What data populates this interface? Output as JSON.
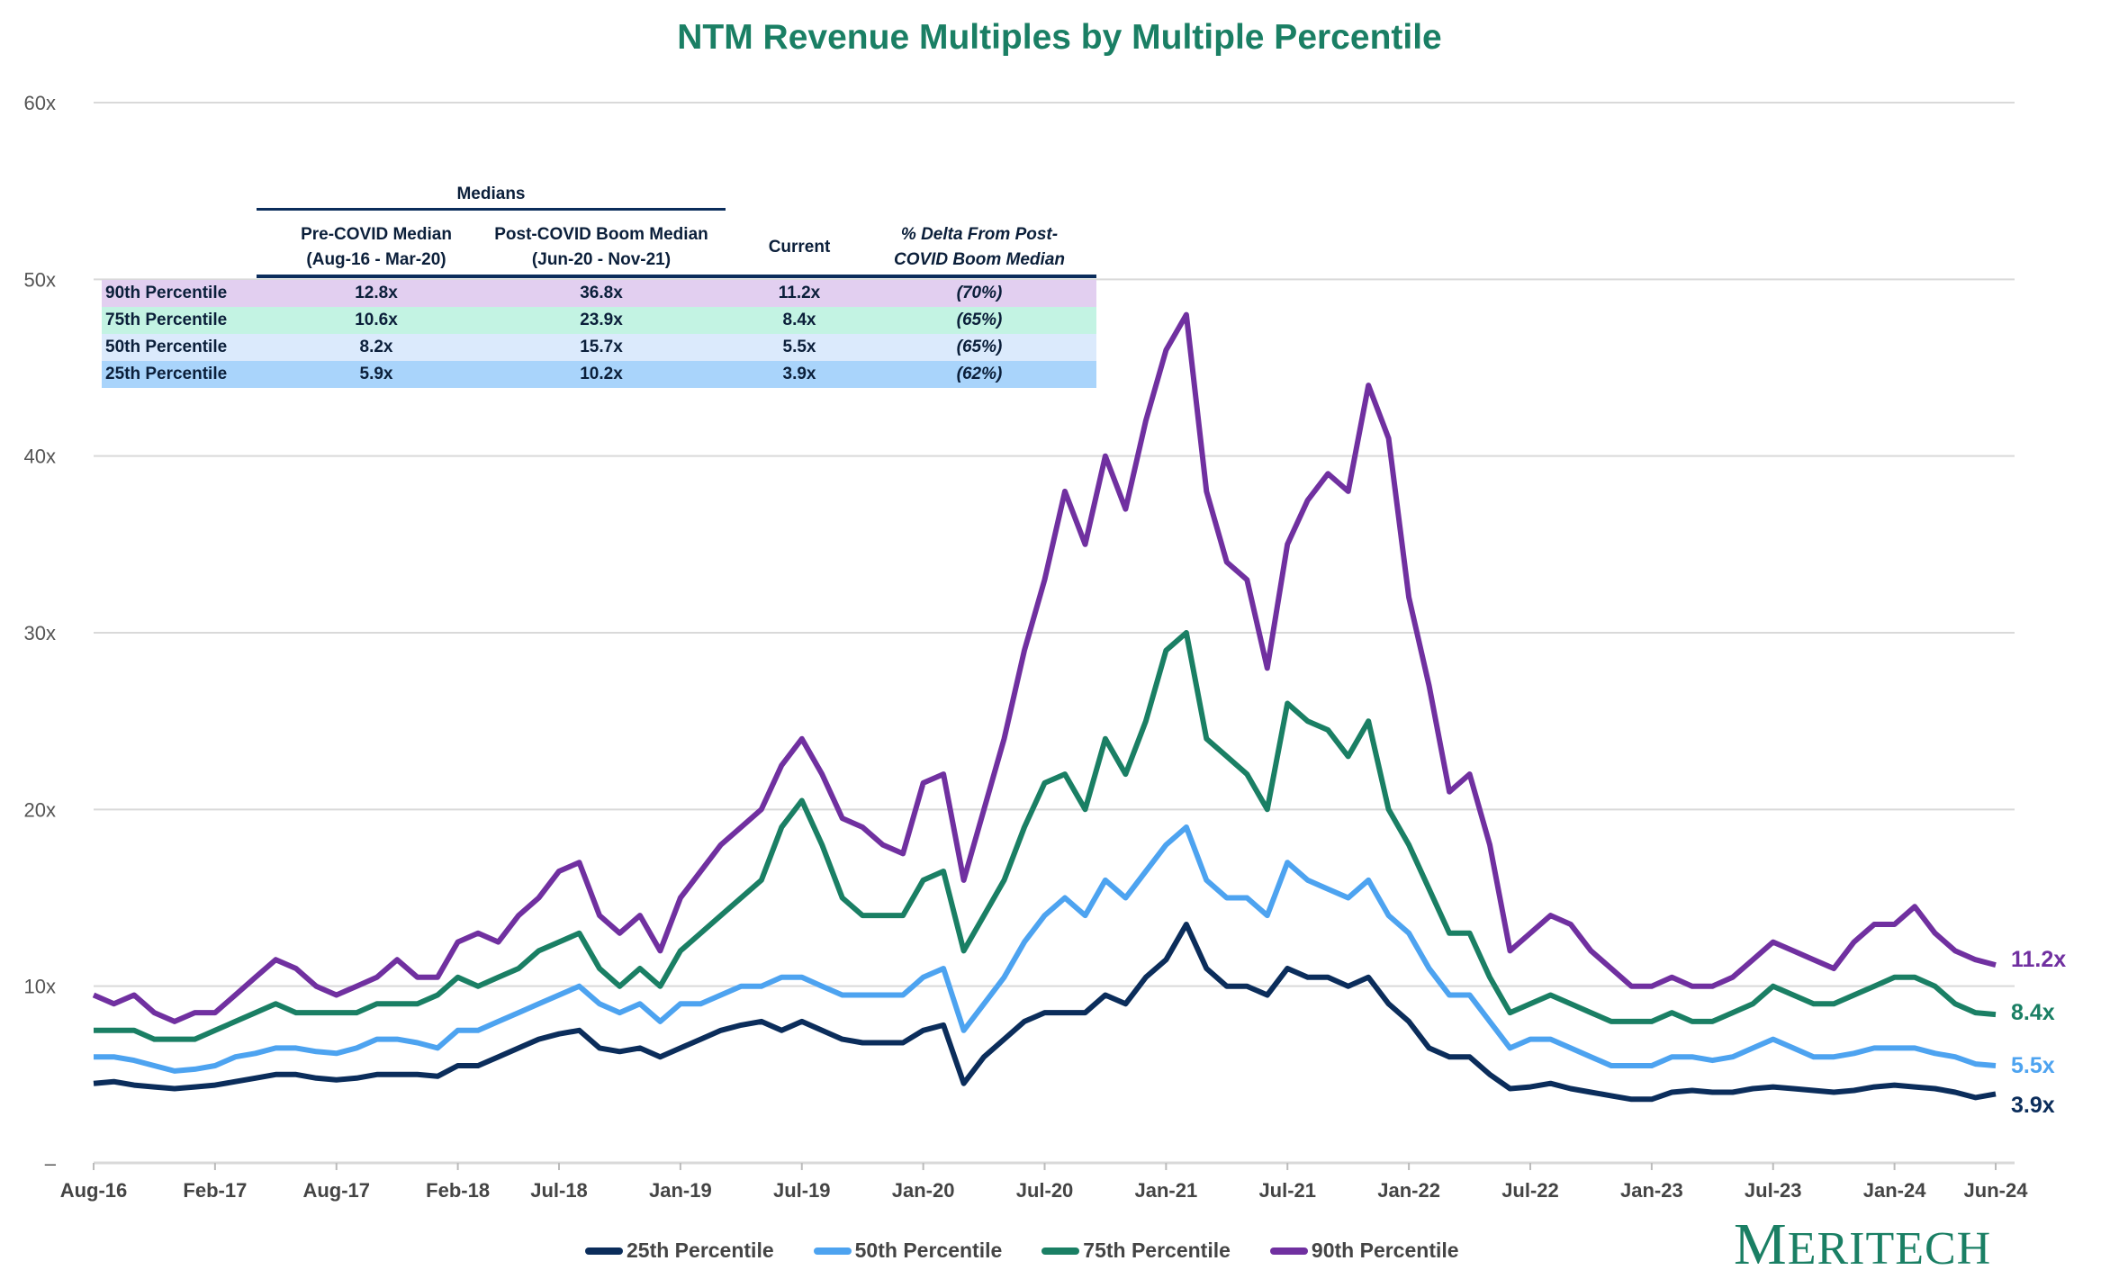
{
  "chart_data": {
    "type": "line",
    "title": "NTM Revenue Multiples by Multiple Percentile",
    "xlabel": "",
    "ylabel": "",
    "ylim": [
      0,
      60
    ],
    "yticks": [
      0,
      10,
      20,
      30,
      40,
      50,
      60
    ],
    "ytick_labels": [
      "–",
      "10x",
      "20x",
      "30x",
      "40x",
      "50x",
      "60x"
    ],
    "x_start": "Aug-16",
    "x_unit": "month",
    "xticks": [
      {
        "index": 0,
        "label": "Aug-16"
      },
      {
        "index": 6,
        "label": "Feb-17"
      },
      {
        "index": 12,
        "label": "Aug-17"
      },
      {
        "index": 18,
        "label": "Feb-18"
      },
      {
        "index": 23,
        "label": "Jul-18"
      },
      {
        "index": 29,
        "label": "Jan-19"
      },
      {
        "index": 35,
        "label": "Jul-19"
      },
      {
        "index": 41,
        "label": "Jan-20"
      },
      {
        "index": 47,
        "label": "Jul-20"
      },
      {
        "index": 53,
        "label": "Jan-21"
      },
      {
        "index": 59,
        "label": "Jul-21"
      },
      {
        "index": 65,
        "label": "Jan-22"
      },
      {
        "index": 71,
        "label": "Jul-22"
      },
      {
        "index": 77,
        "label": "Jan-23"
      },
      {
        "index": 83,
        "label": "Jul-23"
      },
      {
        "index": 89,
        "label": "Jan-24"
      },
      {
        "index": 94,
        "label": "Jun-24"
      }
    ],
    "grid": true,
    "legend_position": "bottom-center",
    "series": [
      {
        "name": "25th Percentile",
        "color": "#0b2d5b",
        "end_label": "3.9x",
        "values": [
          4.5,
          4.6,
          4.4,
          4.3,
          4.2,
          4.3,
          4.4,
          4.6,
          4.8,
          5,
          5,
          4.8,
          4.7,
          4.8,
          5,
          5,
          5,
          4.9,
          5.5,
          5.5,
          6,
          6.5,
          7,
          7.3,
          7.5,
          6.5,
          6.3,
          6.5,
          6,
          6.5,
          7,
          7.5,
          7.8,
          8,
          7.5,
          8,
          7.5,
          7,
          6.8,
          6.8,
          6.8,
          7.5,
          7.8,
          4.5,
          6,
          7,
          8,
          8.5,
          8.5,
          8.5,
          9.5,
          9,
          10.5,
          11.5,
          13.5,
          11,
          10,
          10,
          9.5,
          11,
          10.5,
          10.5,
          10,
          10.5,
          9,
          8,
          6.5,
          6,
          6,
          5,
          4.2,
          4.3,
          4.5,
          4.2,
          4,
          3.8,
          3.6,
          3.6,
          4,
          4.1,
          4,
          4,
          4.2,
          4.3,
          4.2,
          4.1,
          4,
          4.1,
          4.3,
          4.4,
          4.3,
          4.2,
          4,
          3.7,
          3.9
        ]
      },
      {
        "name": "50th Percentile",
        "color": "#4da3f0",
        "end_label": "5.5x",
        "values": [
          6,
          6,
          5.8,
          5.5,
          5.2,
          5.3,
          5.5,
          6,
          6.2,
          6.5,
          6.5,
          6.3,
          6.2,
          6.5,
          7,
          7,
          6.8,
          6.5,
          7.5,
          7.5,
          8,
          8.5,
          9,
          9.5,
          10,
          9,
          8.5,
          9,
          8,
          9,
          9,
          9.5,
          10,
          10,
          10.5,
          10.5,
          10,
          9.5,
          9.5,
          9.5,
          9.5,
          10.5,
          11,
          7.5,
          9,
          10.5,
          12.5,
          14,
          15,
          14,
          16,
          15,
          16.5,
          18,
          19,
          16,
          15,
          15,
          14,
          17,
          16,
          15.5,
          15,
          16,
          14,
          13,
          11,
          9.5,
          9.5,
          8,
          6.5,
          7,
          7,
          6.5,
          6,
          5.5,
          5.5,
          5.5,
          6,
          6,
          5.8,
          6,
          6.5,
          7,
          6.5,
          6,
          6,
          6.2,
          6.5,
          6.5,
          6.5,
          6.2,
          6,
          5.6,
          5.5
        ]
      },
      {
        "name": "75th Percentile",
        "color": "#1a7f64",
        "end_label": "8.4x",
        "values": [
          7.5,
          7.5,
          7.5,
          7,
          7,
          7,
          7.5,
          8,
          8.5,
          9,
          8.5,
          8.5,
          8.5,
          8.5,
          9,
          9,
          9,
          9.5,
          10.5,
          10,
          10.5,
          11,
          12,
          12.5,
          13,
          11,
          10,
          11,
          10,
          12,
          13,
          14,
          15,
          16,
          19,
          20.5,
          18,
          15,
          14,
          14,
          14,
          16,
          16.5,
          12,
          14,
          16,
          19,
          21.5,
          22,
          20,
          24,
          22,
          25,
          29,
          30,
          24,
          23,
          22,
          20,
          26,
          25,
          24.5,
          23,
          25,
          20,
          18,
          15.5,
          13,
          13,
          10.5,
          8.5,
          9,
          9.5,
          9,
          8.5,
          8,
          8,
          8,
          8.5,
          8,
          8,
          8.5,
          9,
          10,
          9.5,
          9,
          9,
          9.5,
          10,
          10.5,
          10.5,
          10,
          9,
          8.5,
          8.4
        ]
      },
      {
        "name": "90th Percentile",
        "color": "#7030a0",
        "end_label": "11.2x",
        "values": [
          9.5,
          9,
          9.5,
          8.5,
          8,
          8.5,
          8.5,
          9.5,
          10.5,
          11.5,
          11,
          10,
          9.5,
          10,
          10.5,
          11.5,
          10.5,
          10.5,
          12.5,
          13,
          12.5,
          14,
          15,
          16.5,
          17,
          14,
          13,
          14,
          12,
          15,
          16.5,
          18,
          19,
          20,
          22.5,
          24,
          22,
          19.5,
          19,
          18,
          17.5,
          21.5,
          22,
          16,
          20,
          24,
          29,
          33,
          38,
          35,
          40,
          37,
          42,
          46,
          48,
          38,
          34,
          33,
          28,
          35,
          37.5,
          39,
          38,
          44,
          41,
          32,
          27,
          21,
          22,
          18,
          12,
          13,
          14,
          13.5,
          12,
          11,
          10,
          10,
          10.5,
          10,
          10,
          10.5,
          11.5,
          12.5,
          12,
          11.5,
          11,
          12.5,
          13.5,
          13.5,
          14.5,
          13,
          12,
          11.5,
          11.2
        ]
      }
    ]
  },
  "table": {
    "group_header": "Medians",
    "columns": [
      {
        "line1": "Pre-COVID Median",
        "line2": "(Aug-16 - Mar-20)"
      },
      {
        "line1": "Post-COVID Boom Median",
        "line2": "(Jun-20 - Nov-21)"
      },
      {
        "line1": "Current",
        "line2": ""
      },
      {
        "line1": "% Delta From Post-",
        "line2": "COVID Boom Median"
      }
    ],
    "rows": [
      {
        "label": "90th Percentile",
        "pre": "12.8x",
        "post": "36.8x",
        "current": "11.2x",
        "delta": "(70%)",
        "color": "#e2cff0"
      },
      {
        "label": "75th Percentile",
        "pre": "10.6x",
        "post": "23.9x",
        "current": "8.4x",
        "delta": "(65%)",
        "color": "#c3f3e3"
      },
      {
        "label": "50th Percentile",
        "pre": "8.2x",
        "post": "15.7x",
        "current": "5.5x",
        "delta": "(65%)",
        "color": "#dbeafc"
      },
      {
        "label": "25th Percentile",
        "pre": "5.9x",
        "post": "10.2x",
        "current": "3.9x",
        "delta": "(62%)",
        "color": "#a9d4fb"
      }
    ]
  },
  "logo": {
    "text": "MERITECH",
    "initial": "M",
    "rest": "ERITECH"
  }
}
